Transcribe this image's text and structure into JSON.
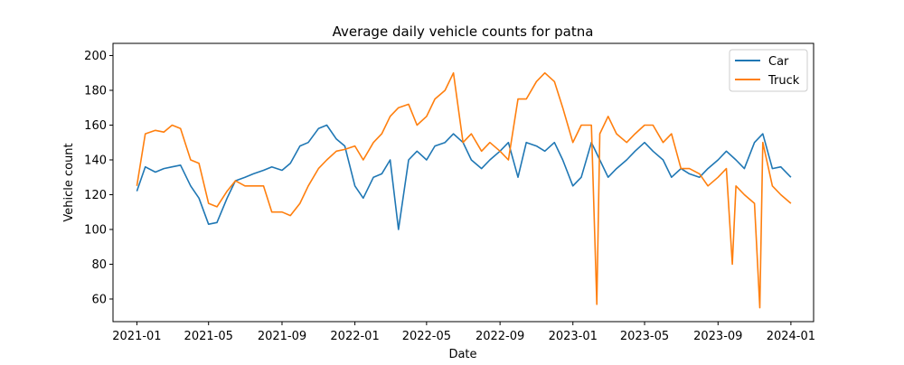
{
  "chart_data": {
    "type": "line",
    "title": "Average daily vehicle counts for patna",
    "xlabel": "Date",
    "ylabel": "Vehicle count",
    "xlim": [
      "2020-11-22",
      "2024-02-08"
    ],
    "ylim": [
      47,
      207
    ],
    "x_ticks": [
      "2021-01",
      "2021-05",
      "2021-09",
      "2022-01",
      "2022-05",
      "2022-09",
      "2023-01",
      "2023-05",
      "2023-09",
      "2024-01"
    ],
    "y_ticks": [
      60,
      80,
      100,
      120,
      140,
      160,
      180,
      200
    ],
    "grid": false,
    "legend_position": "top-right",
    "series": [
      {
        "name": "Car",
        "color": "#1f77b4",
        "points": [
          [
            "2021-01-01",
            122
          ],
          [
            "2021-01-15",
            136
          ],
          [
            "2021-02-01",
            133
          ],
          [
            "2021-02-15",
            135
          ],
          [
            "2021-03-01",
            136
          ],
          [
            "2021-03-15",
            137
          ],
          [
            "2021-04-01",
            125
          ],
          [
            "2021-04-15",
            118
          ],
          [
            "2021-05-01",
            103
          ],
          [
            "2021-05-15",
            104
          ],
          [
            "2021-06-01",
            118
          ],
          [
            "2021-06-15",
            128
          ],
          [
            "2021-07-01",
            130
          ],
          [
            "2021-07-15",
            132
          ],
          [
            "2021-08-01",
            134
          ],
          [
            "2021-08-15",
            136
          ],
          [
            "2021-09-01",
            134
          ],
          [
            "2021-09-15",
            138
          ],
          [
            "2021-10-01",
            148
          ],
          [
            "2021-10-15",
            150
          ],
          [
            "2021-11-01",
            158
          ],
          [
            "2021-11-15",
            160
          ],
          [
            "2021-12-01",
            152
          ],
          [
            "2021-12-15",
            148
          ],
          [
            "2022-01-01",
            125
          ],
          [
            "2022-01-15",
            118
          ],
          [
            "2022-02-01",
            130
          ],
          [
            "2022-02-15",
            132
          ],
          [
            "2022-03-01",
            140
          ],
          [
            "2022-03-15",
            100
          ],
          [
            "2022-04-01",
            140
          ],
          [
            "2022-04-15",
            145
          ],
          [
            "2022-05-01",
            140
          ],
          [
            "2022-05-15",
            148
          ],
          [
            "2022-06-01",
            150
          ],
          [
            "2022-06-15",
            155
          ],
          [
            "2022-07-01",
            150
          ],
          [
            "2022-07-15",
            140
          ],
          [
            "2022-08-01",
            135
          ],
          [
            "2022-08-15",
            140
          ],
          [
            "2022-09-01",
            145
          ],
          [
            "2022-09-15",
            150
          ],
          [
            "2022-10-01",
            130
          ],
          [
            "2022-10-15",
            150
          ],
          [
            "2022-11-01",
            148
          ],
          [
            "2022-11-15",
            145
          ],
          [
            "2022-12-01",
            150
          ],
          [
            "2022-12-15",
            140
          ],
          [
            "2023-01-01",
            125
          ],
          [
            "2023-01-15",
            130
          ],
          [
            "2023-02-01",
            150
          ],
          [
            "2023-02-15",
            140
          ],
          [
            "2023-03-01",
            130
          ],
          [
            "2023-03-15",
            135
          ],
          [
            "2023-04-01",
            140
          ],
          [
            "2023-04-15",
            145
          ],
          [
            "2023-05-01",
            150
          ],
          [
            "2023-05-15",
            145
          ],
          [
            "2023-06-01",
            140
          ],
          [
            "2023-06-15",
            130
          ],
          [
            "2023-07-01",
            135
          ],
          [
            "2023-07-15",
            132
          ],
          [
            "2023-08-01",
            130
          ],
          [
            "2023-08-15",
            135
          ],
          [
            "2023-09-01",
            140
          ],
          [
            "2023-09-15",
            145
          ],
          [
            "2023-10-01",
            140
          ],
          [
            "2023-10-15",
            135
          ],
          [
            "2023-11-01",
            150
          ],
          [
            "2023-11-15",
            155
          ],
          [
            "2023-12-01",
            135
          ],
          [
            "2023-12-15",
            136
          ],
          [
            "2024-01-01",
            130
          ]
        ]
      },
      {
        "name": "Truck",
        "color": "#ff7f0e",
        "points": [
          [
            "2021-01-01",
            125
          ],
          [
            "2021-01-15",
            155
          ],
          [
            "2021-02-01",
            157
          ],
          [
            "2021-02-15",
            156
          ],
          [
            "2021-03-01",
            160
          ],
          [
            "2021-03-15",
            158
          ],
          [
            "2021-04-01",
            140
          ],
          [
            "2021-04-15",
            138
          ],
          [
            "2021-05-01",
            115
          ],
          [
            "2021-05-15",
            113
          ],
          [
            "2021-06-01",
            122
          ],
          [
            "2021-06-15",
            128
          ],
          [
            "2021-07-01",
            125
          ],
          [
            "2021-07-15",
            125
          ],
          [
            "2021-08-01",
            125
          ],
          [
            "2021-08-15",
            110
          ],
          [
            "2021-09-01",
            110
          ],
          [
            "2021-09-15",
            108
          ],
          [
            "2021-10-01",
            115
          ],
          [
            "2021-10-15",
            125
          ],
          [
            "2021-11-01",
            135
          ],
          [
            "2021-11-15",
            140
          ],
          [
            "2021-12-01",
            145
          ],
          [
            "2021-12-15",
            146
          ],
          [
            "2022-01-01",
            148
          ],
          [
            "2022-01-15",
            140
          ],
          [
            "2022-02-01",
            150
          ],
          [
            "2022-02-15",
            155
          ],
          [
            "2022-03-01",
            165
          ],
          [
            "2022-03-15",
            170
          ],
          [
            "2022-04-01",
            172
          ],
          [
            "2022-04-15",
            160
          ],
          [
            "2022-05-01",
            165
          ],
          [
            "2022-05-15",
            175
          ],
          [
            "2022-06-01",
            180
          ],
          [
            "2022-06-15",
            190
          ],
          [
            "2022-07-01",
            150
          ],
          [
            "2022-07-15",
            155
          ],
          [
            "2022-08-01",
            145
          ],
          [
            "2022-08-15",
            150
          ],
          [
            "2022-09-01",
            145
          ],
          [
            "2022-09-15",
            140
          ],
          [
            "2022-10-01",
            175
          ],
          [
            "2022-10-15",
            175
          ],
          [
            "2022-11-01",
            185
          ],
          [
            "2022-11-15",
            190
          ],
          [
            "2022-12-01",
            185
          ],
          [
            "2022-12-15",
            170
          ],
          [
            "2023-01-01",
            150
          ],
          [
            "2023-01-15",
            160
          ],
          [
            "2023-02-01",
            160
          ],
          [
            "2023-02-10",
            57
          ],
          [
            "2023-02-15",
            155
          ],
          [
            "2023-03-01",
            165
          ],
          [
            "2023-03-15",
            155
          ],
          [
            "2023-04-01",
            150
          ],
          [
            "2023-04-15",
            155
          ],
          [
            "2023-05-01",
            160
          ],
          [
            "2023-05-15",
            160
          ],
          [
            "2023-06-01",
            150
          ],
          [
            "2023-06-15",
            155
          ],
          [
            "2023-07-01",
            135
          ],
          [
            "2023-07-15",
            135
          ],
          [
            "2023-08-01",
            132
          ],
          [
            "2023-08-15",
            125
          ],
          [
            "2023-09-01",
            130
          ],
          [
            "2023-09-15",
            135
          ],
          [
            "2023-09-25",
            80
          ],
          [
            "2023-10-01",
            125
          ],
          [
            "2023-10-15",
            120
          ],
          [
            "2023-11-01",
            115
          ],
          [
            "2023-11-10",
            55
          ],
          [
            "2023-11-15",
            150
          ],
          [
            "2023-12-01",
            125
          ],
          [
            "2023-12-15",
            120
          ],
          [
            "2024-01-01",
            115
          ]
        ]
      }
    ]
  }
}
